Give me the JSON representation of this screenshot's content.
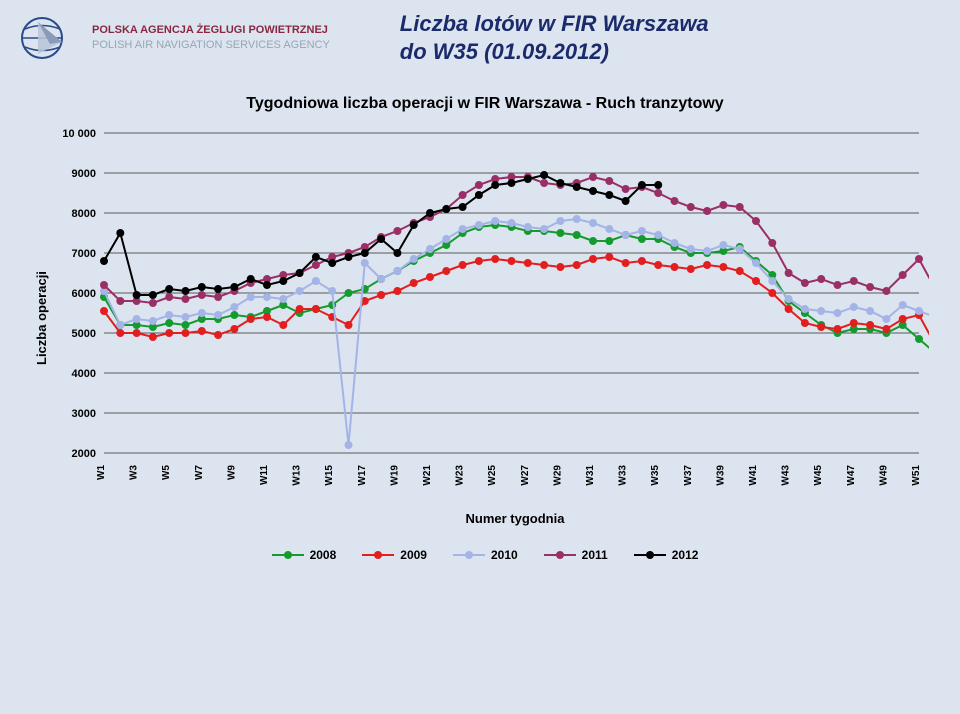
{
  "header": {
    "agency_pl": "POLSKA AGENCJA ŻEGLUGI POWIETRZNEJ",
    "agency_en": "POLISH AIR NAVIGATION SERVICES AGENCY",
    "title_line1": "Liczba lotów w FIR Warszawa",
    "title_line2": "do W35 (01.09.2012)"
  },
  "chart": {
    "type": "line",
    "title": "Tygodniowa liczba operacji w FIR Warszawa - Ruch tranzytowy",
    "ylabel": "Liczba operacji",
    "xlabel": "Numer tygodnia",
    "ylim": [
      2000,
      10000
    ],
    "ytick_step": 1000,
    "yticks": [
      2000,
      3000,
      4000,
      5000,
      6000,
      7000,
      8000,
      9000,
      10000
    ],
    "xlim": [
      1,
      51
    ],
    "xticks": [
      "W1",
      "W3",
      "W5",
      "W7",
      "W9",
      "W11",
      "W13",
      "W15",
      "W17",
      "W19",
      "W21",
      "W23",
      "W25",
      "W27",
      "W29",
      "W31",
      "W33",
      "W35",
      "W37",
      "W39",
      "W41",
      "W43",
      "W45",
      "W47",
      "W49",
      "W51"
    ],
    "background_color": "#dce4ef",
    "grid_color": "#5a5a5a",
    "label_fontsize": 13,
    "title_fontsize": 16,
    "line_width": 2,
    "marker_size": 3.5,
    "series": [
      {
        "name": "2008",
        "color": "#149b2e",
        "values": [
          5900,
          5200,
          5200,
          5150,
          5250,
          5200,
          5350,
          5350,
          5450,
          5400,
          5550,
          5700,
          5500,
          5600,
          5700,
          6000,
          6100,
          6350,
          6550,
          6800,
          7000,
          7200,
          7500,
          7650,
          7700,
          7650,
          7550,
          7550,
          7500,
          7450,
          7300,
          7300,
          7450,
          7350,
          7350,
          7150,
          7000,
          7000,
          7050,
          7150,
          6800,
          6450,
          5800,
          5500,
          5200,
          5000,
          5100,
          5100,
          5000,
          5200,
          4850,
          4500
        ]
      },
      {
        "name": "2009",
        "color": "#e21e1e",
        "values": [
          5550,
          5000,
          5000,
          4900,
          5000,
          5000,
          5050,
          4950,
          5100,
          5350,
          5400,
          5200,
          5600,
          5600,
          5400,
          5200,
          5800,
          5950,
          6050,
          6250,
          6400,
          6550,
          6700,
          6800,
          6850,
          6800,
          6750,
          6700,
          6650,
          6700,
          6850,
          6900,
          6750,
          6800,
          6700,
          6650,
          6600,
          6700,
          6650,
          6550,
          6300,
          6000,
          5600,
          5250,
          5150,
          5100,
          5250,
          5200,
          5100,
          5350,
          5450,
          4700
        ]
      },
      {
        "name": "2010",
        "color": "#a4b4e6",
        "values": [
          6050,
          5200,
          5350,
          5300,
          5450,
          5400,
          5500,
          5450,
          5650,
          5900,
          5900,
          5850,
          6050,
          6300,
          6050,
          2200,
          6750,
          6350,
          6550,
          6850,
          7100,
          7350,
          7600,
          7700,
          7800,
          7750,
          7650,
          7600,
          7800,
          7850,
          7750,
          7600,
          7450,
          7550,
          7450,
          7250,
          7100,
          7050,
          7200,
          7100,
          6750,
          6300,
          5850,
          5600,
          5550,
          5500,
          5650,
          5550,
          5350,
          5700,
          5550,
          5400
        ]
      },
      {
        "name": "2011",
        "color": "#9a2f66",
        "values": [
          6200,
          5800,
          5800,
          5750,
          5900,
          5850,
          5950,
          5900,
          6050,
          6250,
          6350,
          6450,
          6500,
          6700,
          6900,
          7000,
          7150,
          7400,
          7550,
          7750,
          7900,
          8100,
          8450,
          8700,
          8850,
          8900,
          8900,
          8750,
          8700,
          8750,
          8900,
          8800,
          8600,
          8650,
          8500,
          8300,
          8150,
          8050,
          8200,
          8150,
          7800,
          7250,
          6500,
          6250,
          6350,
          6200,
          6300,
          6150,
          6050,
          6450,
          6850,
          6100
        ]
      },
      {
        "name": "2012",
        "color": "#000000",
        "values": [
          6800,
          7500,
          5950,
          5950,
          6100,
          6050,
          6150,
          6100,
          6150,
          6350,
          6200,
          6300,
          6500,
          6900,
          6750,
          6900,
          7000,
          7350,
          7000,
          7700,
          8000,
          8100,
          8150,
          8450,
          8700,
          8750,
          8850,
          8950,
          8750,
          8650,
          8550,
          8450,
          8300,
          8700,
          8700
        ]
      }
    ],
    "legend_labels": [
      "2008",
      "2009",
      "2010",
      "2011",
      "2012"
    ]
  }
}
